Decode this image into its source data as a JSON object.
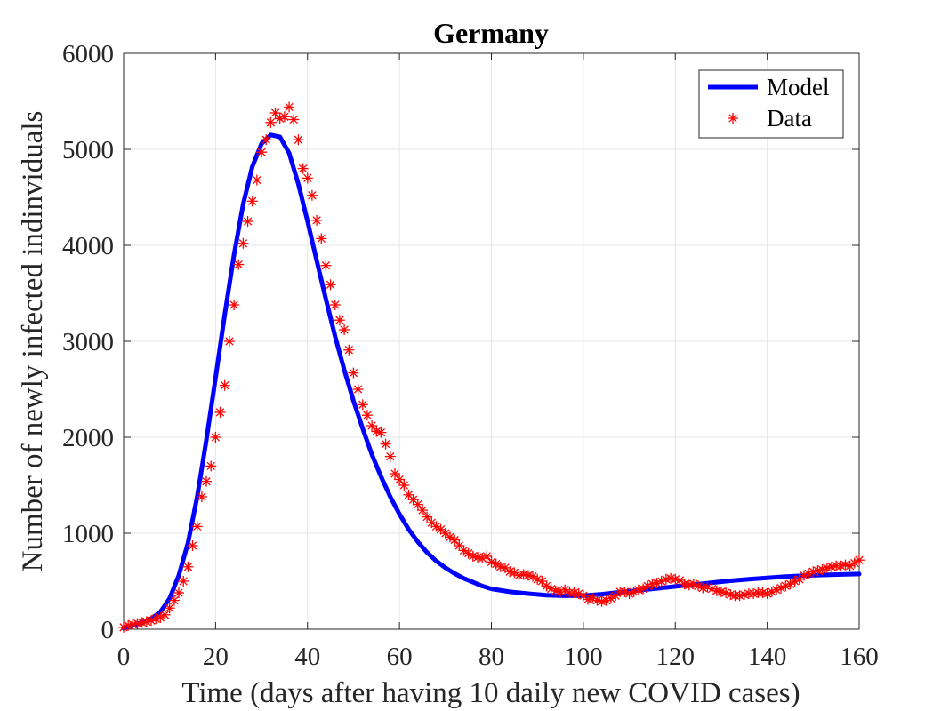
{
  "chart_data": {
    "type": "line",
    "title": "Germany",
    "xlabel": "Time (days after having 10 daily new COVID cases)",
    "ylabel": "Number of newly infected indinviduals",
    "xlim": [
      0,
      160
    ],
    "ylim": [
      0,
      6000
    ],
    "xticks": [
      "0",
      "20",
      "40",
      "60",
      "80",
      "100",
      "120",
      "140",
      "160"
    ],
    "yticks": [
      "0",
      "1000",
      "2000",
      "3000",
      "4000",
      "5000",
      "6000"
    ],
    "grid": true,
    "legend_position": "top-right",
    "series": [
      {
        "name": "Model",
        "kind": "line",
        "color": "#0000ff",
        "x": [
          0,
          2,
          4,
          6,
          8,
          10,
          12,
          14,
          16,
          18,
          20,
          22,
          24,
          26,
          28,
          30,
          32,
          34,
          36,
          38,
          40,
          42,
          44,
          46,
          48,
          50,
          52,
          54,
          56,
          58,
          60,
          62,
          64,
          66,
          68,
          70,
          72,
          74,
          76,
          78,
          80,
          84,
          88,
          92,
          96,
          100,
          104,
          108,
          112,
          116,
          120,
          124,
          128,
          132,
          136,
          140,
          144,
          148,
          152,
          156,
          160
        ],
        "y": [
          10,
          40,
          70,
          110,
          180,
          320,
          560,
          900,
          1380,
          1970,
          2620,
          3280,
          3900,
          4430,
          4820,
          5060,
          5150,
          5130,
          4960,
          4640,
          4250,
          3840,
          3440,
          3050,
          2700,
          2380,
          2090,
          1820,
          1590,
          1380,
          1200,
          1040,
          910,
          800,
          710,
          640,
          580,
          530,
          490,
          450,
          420,
          390,
          370,
          355,
          348,
          350,
          365,
          385,
          405,
          425,
          445,
          465,
          485,
          505,
          520,
          535,
          548,
          558,
          565,
          570,
          575
        ]
      },
      {
        "name": "Data",
        "kind": "scatter",
        "color": "#ff0000",
        "marker": "asterisk",
        "x": [
          0,
          1,
          2,
          3,
          4,
          5,
          6,
          7,
          8,
          9,
          10,
          11,
          12,
          13,
          14,
          15,
          16,
          17,
          18,
          19,
          20,
          21,
          22,
          23,
          24,
          25,
          26,
          27,
          28,
          29,
          30,
          31,
          32,
          33,
          34,
          35,
          36,
          37,
          38,
          39,
          40,
          41,
          42,
          43,
          44,
          45,
          46,
          47,
          48,
          49,
          50,
          51,
          52,
          53,
          54,
          55,
          56,
          57,
          58,
          59,
          60,
          61,
          62,
          63,
          64,
          65,
          66,
          67,
          68,
          69,
          70,
          71,
          72,
          73,
          74,
          75,
          76,
          77,
          78,
          79,
          80,
          81,
          82,
          83,
          84,
          85,
          86,
          87,
          88,
          89,
          90,
          91,
          92,
          93,
          94,
          95,
          96,
          97,
          98,
          99,
          100,
          101,
          102,
          103,
          104,
          105,
          106,
          107,
          108,
          109,
          110,
          111,
          112,
          113,
          114,
          115,
          116,
          117,
          118,
          119,
          120,
          121,
          122,
          123,
          124,
          125,
          126,
          127,
          128,
          129,
          130,
          131,
          132,
          133,
          134,
          135,
          136,
          137,
          138,
          139,
          140,
          141,
          142,
          143,
          144,
          145,
          146,
          147,
          148,
          149,
          150,
          151,
          152,
          153,
          154,
          155,
          156,
          157,
          158,
          159,
          160
        ],
        "y": [
          20,
          40,
          50,
          60,
          70,
          80,
          90,
          110,
          120,
          150,
          220,
          300,
          380,
          500,
          650,
          870,
          1070,
          1380,
          1540,
          1700,
          2000,
          2260,
          2540,
          3000,
          3380,
          3800,
          4020,
          4250,
          4460,
          4680,
          4970,
          5100,
          5280,
          5380,
          5320,
          5340,
          5440,
          5310,
          5100,
          4800,
          4700,
          4520,
          4260,
          4070,
          3790,
          3590,
          3380,
          3220,
          3120,
          2910,
          2670,
          2500,
          2340,
          2230,
          2120,
          2060,
          2050,
          1930,
          1800,
          1620,
          1560,
          1500,
          1400,
          1350,
          1300,
          1240,
          1170,
          1110,
          1070,
          1040,
          1000,
          960,
          930,
          870,
          820,
          790,
          760,
          750,
          740,
          760,
          700,
          680,
          650,
          640,
          600,
          590,
          560,
          570,
          560,
          550,
          520,
          500,
          450,
          420,
          400,
          390,
          410,
          380,
          380,
          370,
          350,
          310,
          320,
          300,
          290,
          300,
          320,
          350,
          390,
          390,
          370,
          390,
          410,
          420,
          450,
          470,
          480,
          500,
          520,
          530,
          520,
          510,
          470,
          460,
          470,
          450,
          430,
          440,
          420,
          400,
          390,
          380,
          360,
          350,
          350,
          360,
          370,
          370,
          380,
          380,
          370,
          390,
          410,
          430,
          450,
          470,
          500,
          520,
          560,
          580,
          600,
          610,
          620,
          640,
          650,
          660,
          660,
          670,
          660,
          690,
          720
        ]
      }
    ]
  }
}
